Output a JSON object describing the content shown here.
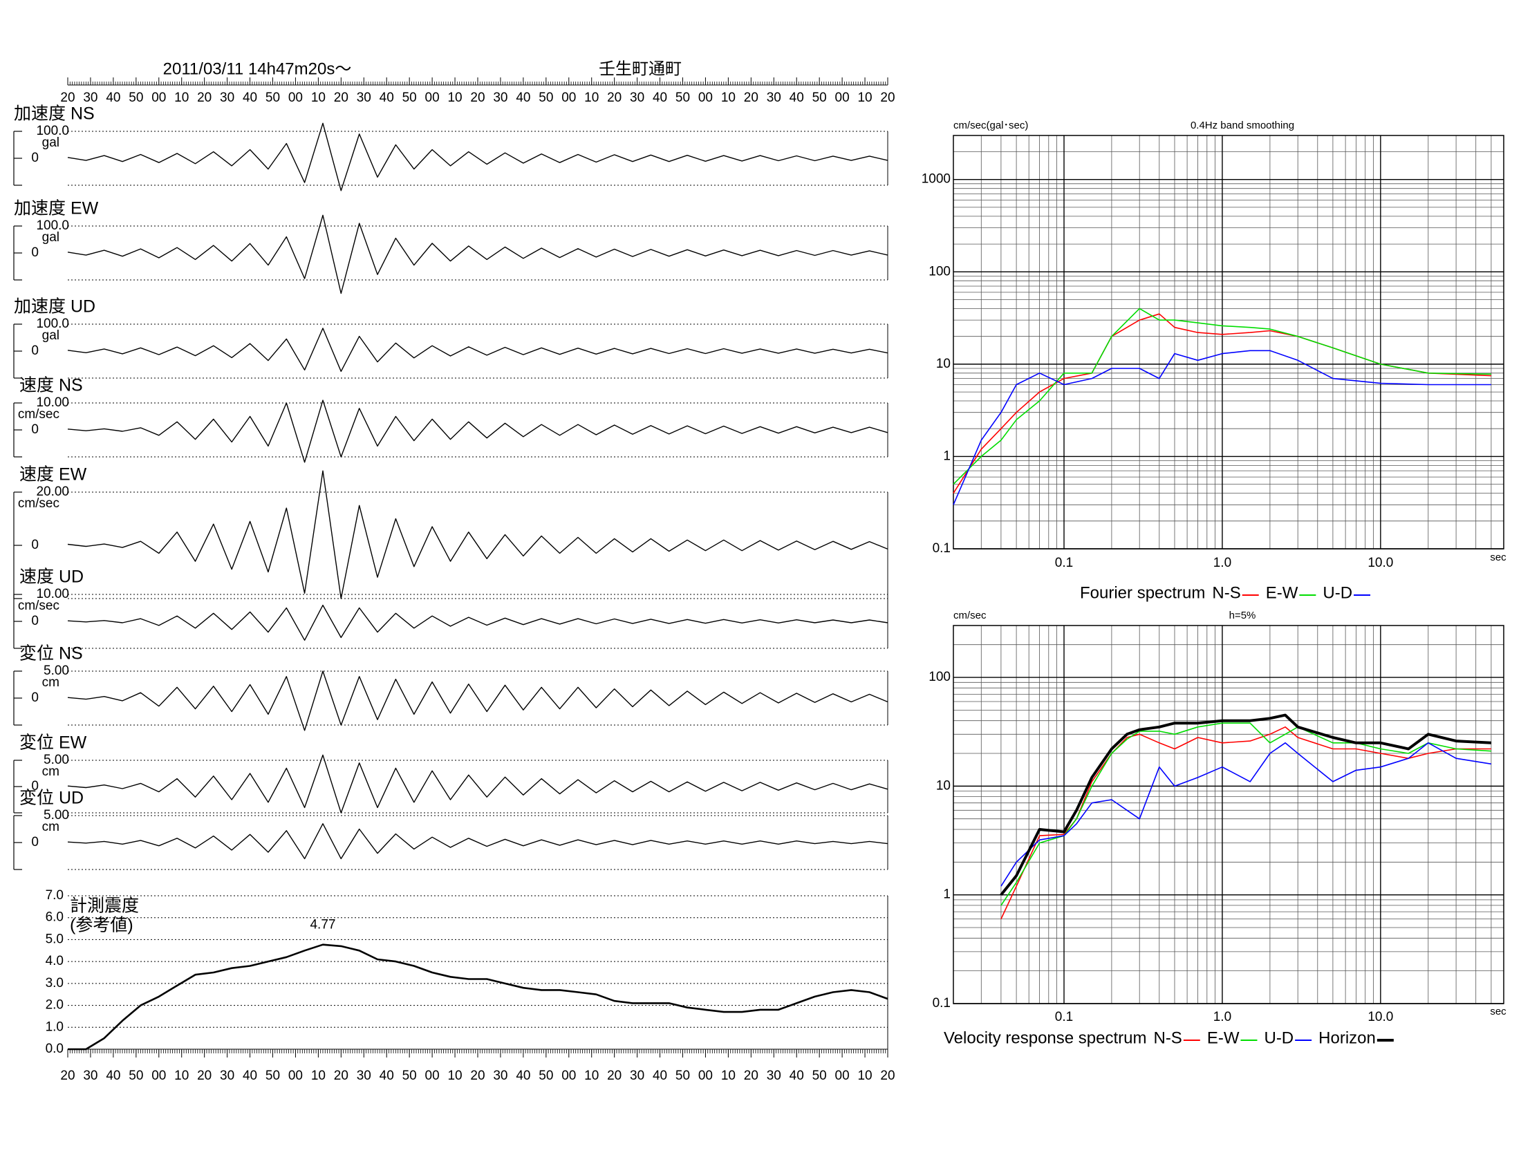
{
  "chart_data": [
    {
      "type": "waveform",
      "title": "2011/03/11  14h47m20s〜",
      "subtitle": "壬生町通町",
      "xlim": [
        0,
        360
      ],
      "xticks": [
        {
          "value": 0,
          "label": "20"
        },
        {
          "value": 10,
          "label": "30"
        },
        {
          "value": 20,
          "label": "40"
        },
        {
          "value": 30,
          "label": "50"
        },
        {
          "value": 40,
          "label": "00"
        },
        {
          "value": 50,
          "label": "10"
        },
        {
          "value": 60,
          "label": "20"
        },
        {
          "value": 70,
          "label": "30"
        },
        {
          "value": 80,
          "label": "40"
        },
        {
          "value": 90,
          "label": "50"
        },
        {
          "value": 100,
          "label": "00"
        },
        {
          "value": 110,
          "label": "10"
        },
        {
          "value": 120,
          "label": "20"
        },
        {
          "value": 130,
          "label": "30"
        },
        {
          "value": 140,
          "label": "40"
        },
        {
          "value": 150,
          "label": "50"
        },
        {
          "value": 160,
          "label": "00"
        },
        {
          "value": 170,
          "label": "10"
        },
        {
          "value": 180,
          "label": "20"
        },
        {
          "value": 190,
          "label": "30"
        },
        {
          "value": 200,
          "label": "40"
        },
        {
          "value": 210,
          "label": "50"
        },
        {
          "value": 220,
          "label": "00"
        },
        {
          "value": 230,
          "label": "10"
        },
        {
          "value": 240,
          "label": "20"
        },
        {
          "value": 250,
          "label": "30"
        },
        {
          "value": 260,
          "label": "40"
        },
        {
          "value": 270,
          "label": "50"
        },
        {
          "value": 280,
          "label": "00"
        },
        {
          "value": 290,
          "label": "10"
        },
        {
          "value": 300,
          "label": "20"
        },
        {
          "value": 310,
          "label": "30"
        },
        {
          "value": 320,
          "label": "40"
        },
        {
          "value": 330,
          "label": "50"
        },
        {
          "value": 340,
          "label": "00"
        },
        {
          "value": 350,
          "label": "10"
        },
        {
          "value": 360,
          "label": "20"
        }
      ],
      "color": "#000000",
      "traces": [
        {
          "name": "加速度 NS",
          "unit": "gal",
          "ylim": [
            -100,
            100
          ],
          "yticks": [
            {
              "value": 100,
              "label": "100.0"
            },
            0
          ],
          "values": [
            3,
            -8,
            10,
            -12,
            14,
            -16,
            18,
            -20,
            24,
            -28,
            32,
            -40,
            55,
            -90,
            130,
            -120,
            90,
            -70,
            50,
            -40,
            32,
            -28,
            24,
            -22,
            20,
            -18,
            16,
            -16,
            14,
            -14,
            13,
            -12,
            12,
            -12,
            11,
            -11,
            10,
            -10,
            10,
            -9,
            9,
            -9,
            8,
            -8,
            8,
            -8
          ]
        },
        {
          "name": "加速度 EW",
          "unit": "gal",
          "ylim": [
            -100,
            100
          ],
          "yticks": [
            {
              "value": 100,
              "label": "100.0"
            },
            0
          ],
          "values": [
            3,
            -8,
            10,
            -12,
            15,
            -18,
            20,
            -24,
            28,
            -30,
            35,
            -45,
            60,
            -95,
            140,
            -150,
            110,
            -80,
            55,
            -45,
            36,
            -30,
            26,
            -24,
            22,
            -20,
            18,
            -17,
            16,
            -15,
            14,
            -13,
            13,
            -12,
            12,
            -11,
            11,
            -10,
            10,
            -10,
            9,
            -9,
            9,
            -8,
            8,
            -8
          ]
        },
        {
          "name": "加速度 UD",
          "unit": "gal",
          "ylim": [
            -100,
            100
          ],
          "yticks": [
            {
              "value": 100,
              "label": "100.0"
            },
            0
          ],
          "values": [
            3,
            -6,
            8,
            -10,
            12,
            -13,
            15,
            -17,
            20,
            -24,
            28,
            -35,
            45,
            -70,
            85,
            -75,
            55,
            -40,
            30,
            -25,
            20,
            -18,
            16,
            -15,
            14,
            -13,
            12,
            -12,
            11,
            -11,
            10,
            -10,
            10,
            -9,
            9,
            -9,
            9,
            -8,
            8,
            -8,
            8,
            -8,
            7,
            -7,
            7,
            -7
          ]
        },
        {
          "name": "速度 NS",
          "unit": "cm/sec",
          "ylim": [
            -10,
            10
          ],
          "yticks": [
            {
              "value": 10,
              "label": "10.00"
            },
            0
          ],
          "values": [
            0.3,
            -0.3,
            0.4,
            -0.5,
            0.8,
            -2,
            3,
            -3.5,
            4,
            -4.5,
            5,
            -6,
            10,
            -12,
            11,
            -10,
            8,
            -6,
            5,
            -4,
            4,
            -3.5,
            3,
            -3,
            2.5,
            -2.5,
            2,
            -2,
            2,
            -1.8,
            1.8,
            -1.6,
            1.6,
            -1.5,
            1.5,
            -1.4,
            1.4,
            -1.3,
            1.2,
            -1.2,
            1.2,
            -1.1,
            1,
            -1,
            1,
            -1
          ]
        },
        {
          "name": "速度 EW",
          "unit": "cm/sec",
          "ylim": [
            -20,
            20
          ],
          "yticks": [
            {
              "value": 20,
              "label": "20.00"
            },
            0
          ],
          "values": [
            0.4,
            -0.4,
            0.5,
            -0.8,
            1.5,
            -3,
            5,
            -6,
            8,
            -9,
            9,
            -10,
            14,
            -18,
            28,
            -20,
            15,
            -12,
            10,
            -8,
            7,
            -6,
            5,
            -5,
            4,
            -4,
            3.5,
            -3,
            3,
            -3,
            2.5,
            -2.5,
            2.5,
            -2.2,
            2,
            -2,
            2,
            -2,
            1.8,
            -1.8,
            1.6,
            -1.6,
            1.5,
            -1.5,
            1.4,
            -1.4
          ]
        },
        {
          "name": "速度 UD",
          "unit": "cm/sec",
          "ylim": [
            -10,
            10
          ],
          "yticks": [
            {
              "value": 10,
              "label": "10.00"
            },
            0
          ],
          "values": [
            0.2,
            -0.2,
            0.3,
            -0.5,
            1,
            -1.5,
            2,
            -2.5,
            3,
            -3,
            3.5,
            -4,
            5,
            -7,
            6,
            -6,
            5,
            -4,
            3,
            -2.5,
            2,
            -1.8,
            1.5,
            -1.4,
            1.2,
            -1.2,
            1,
            -1,
            1,
            -0.9,
            0.9,
            -0.8,
            0.8,
            -0.8,
            0.7,
            -0.7,
            0.7,
            -0.6,
            0.6,
            -0.6,
            0.6,
            -0.5,
            0.5,
            -0.5,
            0.5,
            -0.5
          ]
        },
        {
          "name": "変位 NS",
          "unit": "cm",
          "ylim": [
            -5,
            5
          ],
          "yticks": [
            {
              "value": 5,
              "label": "5.00"
            },
            0
          ],
          "values": [
            0.1,
            -0.2,
            0.3,
            -0.5,
            1,
            -1.5,
            2,
            -2,
            2.2,
            -2.5,
            2.5,
            -3,
            4,
            -6,
            5,
            -5,
            4,
            -4,
            3.5,
            -3,
            3,
            -2.8,
            2.6,
            -2.5,
            2.4,
            -2.2,
            2,
            -2,
            2,
            -1.8,
            1.7,
            -1.6,
            1.5,
            -1.4,
            1.3,
            -1.2,
            1.1,
            -1,
            1,
            -0.9,
            0.9,
            -0.8,
            0.8,
            -0.7,
            0.7,
            -0.7
          ]
        },
        {
          "name": "変位 EW",
          "unit": "cm",
          "ylim": [
            -5,
            5
          ],
          "yticks": [
            {
              "value": 5,
              "label": "5.00"
            },
            0
          ],
          "values": [
            0.1,
            -0.2,
            0.3,
            -0.4,
            0.6,
            -1,
            1.5,
            -2,
            2,
            -2.5,
            2.5,
            -3,
            3.5,
            -4,
            6,
            -5,
            4.5,
            -4,
            3.5,
            -3,
            3,
            -2.5,
            2.2,
            -2,
            1.8,
            -1.6,
            1.5,
            -1.4,
            1.3,
            -1.2,
            1.1,
            -1,
            1,
            -1,
            0.9,
            -0.9,
            0.8,
            -0.8,
            0.8,
            -0.7,
            0.7,
            -0.6,
            0.6,
            -0.6,
            0.5,
            -0.5
          ]
        },
        {
          "name": "変位 UD",
          "unit": "cm",
          "ylim": [
            -5,
            5
          ],
          "yticks": [
            {
              "value": 5,
              "label": "5.00"
            },
            0
          ],
          "values": [
            0.1,
            -0.1,
            0.2,
            -0.3,
            0.4,
            -0.6,
            0.8,
            -1,
            1.2,
            -1.4,
            1.5,
            -1.8,
            2.2,
            -3,
            3.5,
            -3,
            2.5,
            -2,
            1.6,
            -1.2,
            1,
            -0.9,
            0.8,
            -0.7,
            0.6,
            -0.6,
            0.5,
            -0.5,
            0.5,
            -0.4,
            0.4,
            -0.4,
            0.4,
            -0.3,
            0.3,
            -0.3,
            0.3,
            -0.3,
            0.3,
            -0.3,
            0.3,
            -0.2,
            0.2,
            -0.2,
            0.2,
            -0.2
          ]
        }
      ]
    },
    {
      "type": "intensity",
      "title": "計測震度",
      "subtitle": "(参考値)",
      "xlim": [
        0,
        360
      ],
      "ylim": [
        0,
        7
      ],
      "color": "#000000",
      "yticks": [
        {
          "value": 0,
          "label": "0.0"
        },
        {
          "value": 1,
          "label": "1.0"
        },
        {
          "value": 2,
          "label": "2.0"
        },
        {
          "value": 3,
          "label": "3.0"
        },
        {
          "value": 4,
          "label": "4.0"
        },
        {
          "value": 5,
          "label": "5.0"
        },
        {
          "value": 6,
          "label": "6.0"
        },
        {
          "value": 7,
          "label": "7.0"
        }
      ],
      "values": [
        0,
        0,
        0.5,
        1.3,
        2.0,
        2.4,
        2.9,
        3.4,
        3.5,
        3.7,
        3.8,
        4.0,
        4.2,
        4.5,
        4.77,
        4.7,
        4.5,
        4.1,
        4.0,
        3.8,
        3.5,
        3.3,
        3.2,
        3.2,
        3.0,
        2.8,
        2.7,
        2.7,
        2.6,
        2.5,
        2.2,
        2.1,
        2.1,
        2.1,
        1.9,
        1.8,
        1.7,
        1.7,
        1.8,
        1.8,
        2.1,
        2.4,
        2.6,
        2.7,
        2.6,
        2.3
      ],
      "value_labels": [
        null,
        null,
        null,
        null,
        null,
        null,
        null,
        null,
        null,
        null,
        null,
        null,
        null,
        null,
        "4.77",
        null,
        null,
        null,
        null,
        null,
        null,
        null,
        null,
        null,
        null,
        null,
        null,
        null,
        null,
        null,
        null,
        null,
        null,
        null,
        null,
        null,
        null,
        null,
        null,
        null,
        null,
        null,
        null,
        null,
        null,
        null
      ]
    },
    {
      "type": "loglog",
      "y_label": "cm/sec(gal･sec)",
      "subtitle": "0.4Hz band smoothing",
      "x_unit": "sec",
      "caption": "Fourier spectrum",
      "xlim": [
        0.02,
        60
      ],
      "ylim": [
        0.1,
        3000
      ],
      "log_scale": true,
      "grid": true,
      "xticks": [
        0.1,
        {
          "value": 1,
          "label": "1.0"
        },
        {
          "value": 10,
          "label": "10.0"
        }
      ],
      "yticks": [
        0.1,
        1,
        10,
        100,
        1000
      ],
      "x": [
        0.02,
        0.03,
        0.04,
        0.05,
        0.07,
        0.1,
        0.15,
        0.2,
        0.3,
        0.4,
        0.5,
        0.7,
        1,
        1.5,
        2,
        3,
        5,
        10,
        20,
        50
      ],
      "series": [
        {
          "name": "N-S",
          "color": "#ff0000",
          "values": [
            0.4,
            1.2,
            2,
            3,
            5,
            7,
            8,
            20,
            30,
            35,
            25,
            22,
            21,
            22,
            23,
            20,
            15,
            10,
            8,
            7.5
          ]
        },
        {
          "name": "E-W",
          "color": "#00dd00",
          "values": [
            0.5,
            1,
            1.5,
            2.5,
            4,
            8,
            8,
            20,
            40,
            30,
            30,
            28,
            26,
            25,
            24,
            20,
            15,
            10,
            8,
            7.8
          ]
        },
        {
          "name": "U-D",
          "color": "#0000ff",
          "values": [
            0.3,
            1.5,
            3,
            6,
            8,
            6,
            7,
            9,
            9,
            7,
            13,
            11,
            13,
            14,
            14,
            11,
            7,
            6.2,
            6,
            6
          ]
        }
      ]
    },
    {
      "type": "loglog",
      "y_label": "cm/sec",
      "subtitle": "h=5%",
      "x_unit": "sec",
      "caption": "Velocity response spectrum",
      "xlim": [
        0.02,
        60
      ],
      "ylim": [
        0.1,
        300
      ],
      "log_scale": true,
      "grid": true,
      "xticks": [
        0.1,
        {
          "value": 1,
          "label": "1.0"
        },
        {
          "value": 10,
          "label": "10.0"
        }
      ],
      "yticks": [
        0.1,
        1,
        10,
        100
      ],
      "x": [
        0.04,
        0.05,
        0.07,
        0.1,
        0.12,
        0.15,
        0.2,
        0.25,
        0.3,
        0.4,
        0.5,
        0.7,
        1,
        1.5,
        2,
        2.5,
        3,
        5,
        7,
        10,
        15,
        20,
        30,
        50
      ],
      "series": [
        {
          "name": "N-S",
          "color": "#ff0000",
          "values": [
            0.6,
            1.2,
            3.5,
            3.6,
            5,
            11,
            20,
            28,
            30,
            25,
            22,
            28,
            25,
            26,
            30,
            35,
            28,
            22,
            22,
            20,
            18,
            20,
            22,
            22
          ]
        },
        {
          "name": "E-W",
          "color": "#00dd00",
          "values": [
            0.8,
            1.3,
            3,
            3.5,
            5,
            10,
            20,
            27,
            32,
            32,
            30,
            35,
            38,
            38,
            25,
            30,
            35,
            25,
            25,
            22,
            20,
            25,
            22,
            21
          ]
        },
        {
          "name": "U-D",
          "color": "#0000ff",
          "values": [
            1.2,
            2,
            3.2,
            3.5,
            4.5,
            7,
            7.5,
            6,
            5,
            15,
            10,
            12,
            15,
            11,
            20,
            25,
            20,
            11,
            14,
            15,
            18,
            25,
            18,
            16
          ]
        },
        {
          "name": "Horizon",
          "color": "#000000",
          "line_width": 4,
          "values": [
            1,
            1.5,
            4,
            3.8,
            6,
            12,
            22,
            30,
            33,
            35,
            38,
            38,
            40,
            40,
            42,
            45,
            35,
            28,
            25,
            25,
            22,
            30,
            26,
            25
          ]
        }
      ]
    }
  ]
}
